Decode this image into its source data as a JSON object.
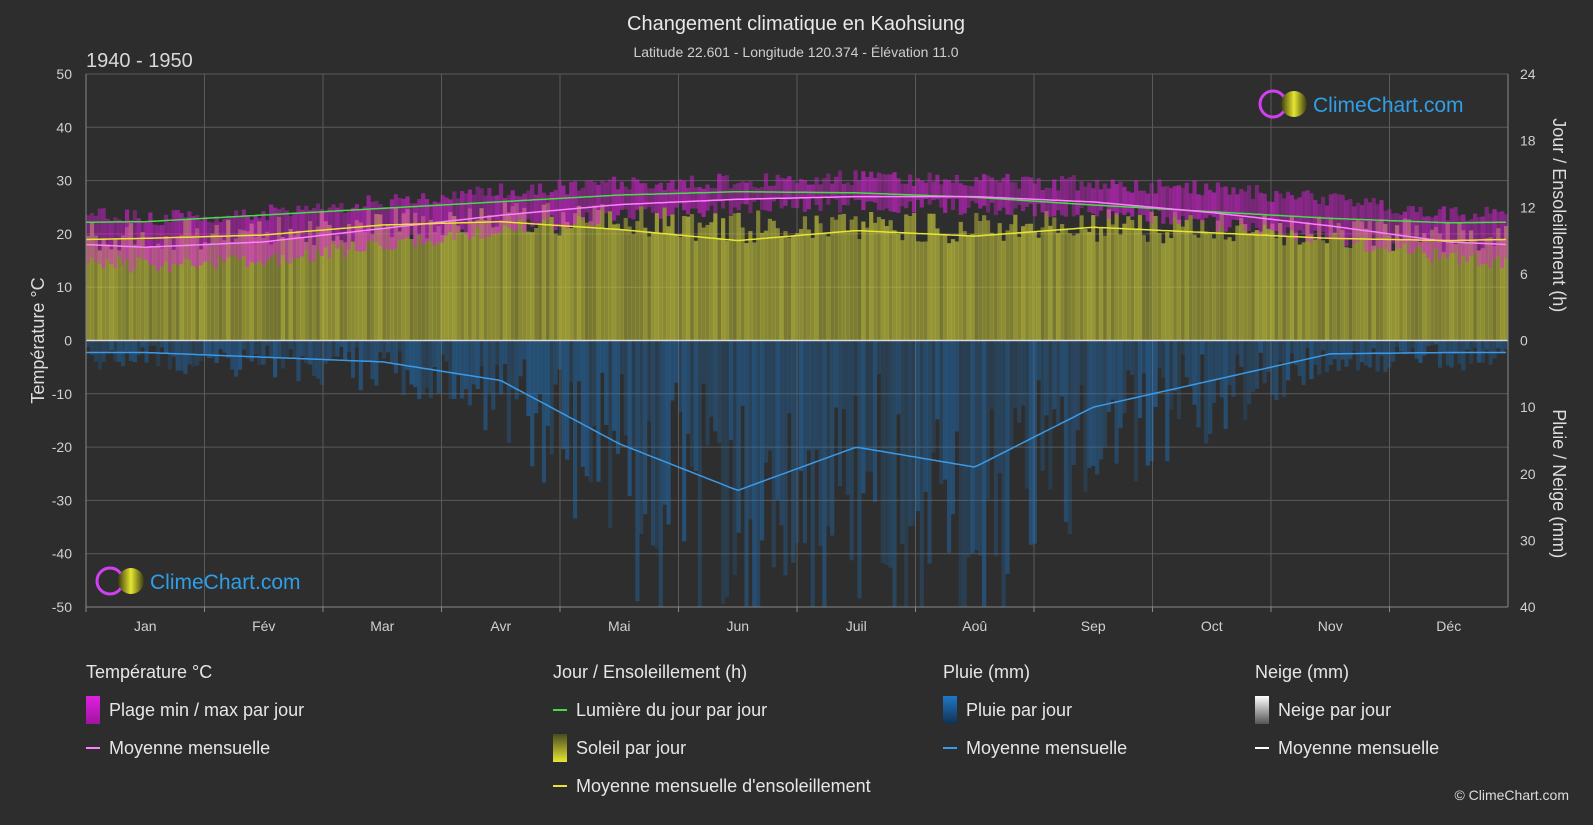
{
  "header": {
    "title": "Changement climatique en Kaohsiung",
    "subtitle": "Latitude 22.601 - Longitude 120.374 - Élévation 11.0",
    "period": "1940 - 1950"
  },
  "brand": {
    "logo_text": "ClimeChart.com",
    "copyright": "© ClimeChart.com"
  },
  "colors": {
    "background": "#2d2d2d",
    "temp_range": "#e020e0",
    "temp_mean": "#ff80ff",
    "daylight": "#44dd44",
    "sunshine": "#c8c83c",
    "sunshine_mean": "#e6e632",
    "rain": "#1e78c8",
    "rain_mean": "#3a9ae8",
    "snow_mean": "#ffffff"
  },
  "chart_data": {
    "type": "area",
    "months": [
      "Jan",
      "Fév",
      "Mar",
      "Avr",
      "Mai",
      "Jun",
      "Juil",
      "Aoû",
      "Sep",
      "Oct",
      "Nov",
      "Déc"
    ],
    "y_left": {
      "label": "Température °C",
      "ylim": [
        -50,
        50
      ],
      "ticks": [
        50,
        40,
        30,
        20,
        10,
        0,
        -10,
        -20,
        -30,
        -40,
        -50
      ]
    },
    "y_right_top": {
      "label": "Jour / Ensoleillement (h)",
      "ylim": [
        0,
        24
      ],
      "ticks": [
        24,
        18,
        12,
        6,
        0
      ]
    },
    "y_right_bottom": {
      "label": "Pluie / Neige (mm)",
      "ylim": [
        0,
        40
      ],
      "ticks": [
        0,
        10,
        20,
        30,
        40
      ]
    },
    "grid": true,
    "series": [
      {
        "name": "Moyenne mensuelle",
        "group": "Température °C",
        "unit": "°C",
        "values": [
          17.5,
          18.5,
          21.0,
          23.5,
          25.5,
          26.5,
          27.0,
          27.0,
          26.0,
          24.0,
          21.5,
          18.5
        ]
      },
      {
        "name": "Plage min / max par jour",
        "group": "Température °C",
        "unit": "°C",
        "min": [
          14.0,
          15.0,
          18.0,
          21.0,
          23.5,
          25.0,
          25.5,
          25.0,
          24.5,
          22.0,
          19.0,
          15.5
        ],
        "max": [
          23.0,
          24.0,
          26.0,
          28.0,
          29.5,
          30.0,
          30.5,
          30.0,
          29.5,
          28.5,
          26.5,
          24.0
        ]
      },
      {
        "name": "Lumière du jour par jour",
        "group": "Jour / Ensoleillement (h)",
        "unit": "h",
        "values": [
          10.7,
          11.3,
          11.9,
          12.5,
          13.1,
          13.4,
          13.3,
          12.9,
          12.2,
          11.6,
          11.0,
          10.6
        ]
      },
      {
        "name": "Soleil par jour",
        "group": "Jour / Ensoleillement (h)",
        "unit": "h",
        "values": [
          9.5,
          9.8,
          10.5,
          11.0,
          10.8,
          10.2,
          10.5,
          10.2,
          10.4,
          10.1,
          9.7,
          9.4
        ]
      },
      {
        "name": "Moyenne mensuelle d'ensoleillement",
        "group": "Jour / Ensoleillement (h)",
        "unit": "h",
        "values": [
          9.2,
          9.5,
          10.4,
          10.7,
          10.0,
          9.0,
          9.9,
          9.4,
          10.2,
          9.7,
          9.2,
          9.0
        ]
      },
      {
        "name": "Pluie par jour",
        "group": "Pluie (mm)",
        "unit": "mm",
        "values": [
          1.8,
          2.5,
          3.2,
          6.0,
          15.5,
          22.5,
          16.0,
          19.0,
          10.0,
          6.0,
          2.0,
          1.8
        ]
      },
      {
        "name": "Moyenne mensuelle",
        "group": "Pluie (mm)",
        "unit": "mm",
        "values": [
          1.8,
          2.5,
          3.2,
          6.0,
          15.5,
          22.5,
          16.0,
          19.0,
          10.0,
          6.0,
          2.0,
          1.8
        ]
      },
      {
        "name": "Neige par jour",
        "group": "Neige (mm)",
        "unit": "mm",
        "values": [
          0,
          0,
          0,
          0,
          0,
          0,
          0,
          0,
          0,
          0,
          0,
          0
        ]
      },
      {
        "name": "Moyenne mensuelle",
        "group": "Neige (mm)",
        "unit": "mm",
        "values": [
          0,
          0,
          0,
          0,
          0,
          0,
          0,
          0,
          0,
          0,
          0,
          0
        ]
      }
    ]
  },
  "legend": {
    "temp": {
      "title": "Température °C",
      "range": "Plage min / max par jour",
      "mean": "Moyenne mensuelle"
    },
    "sun": {
      "title": "Jour / Ensoleillement (h)",
      "daylight": "Lumière du jour par jour",
      "sunshine": "Soleil par jour",
      "sun_mean": "Moyenne mensuelle d'ensoleillement"
    },
    "rain": {
      "title": "Pluie (mm)",
      "daily": "Pluie par jour",
      "mean": "Moyenne mensuelle"
    },
    "snow": {
      "title": "Neige (mm)",
      "daily": "Neige par jour",
      "mean": "Moyenne mensuelle"
    }
  }
}
